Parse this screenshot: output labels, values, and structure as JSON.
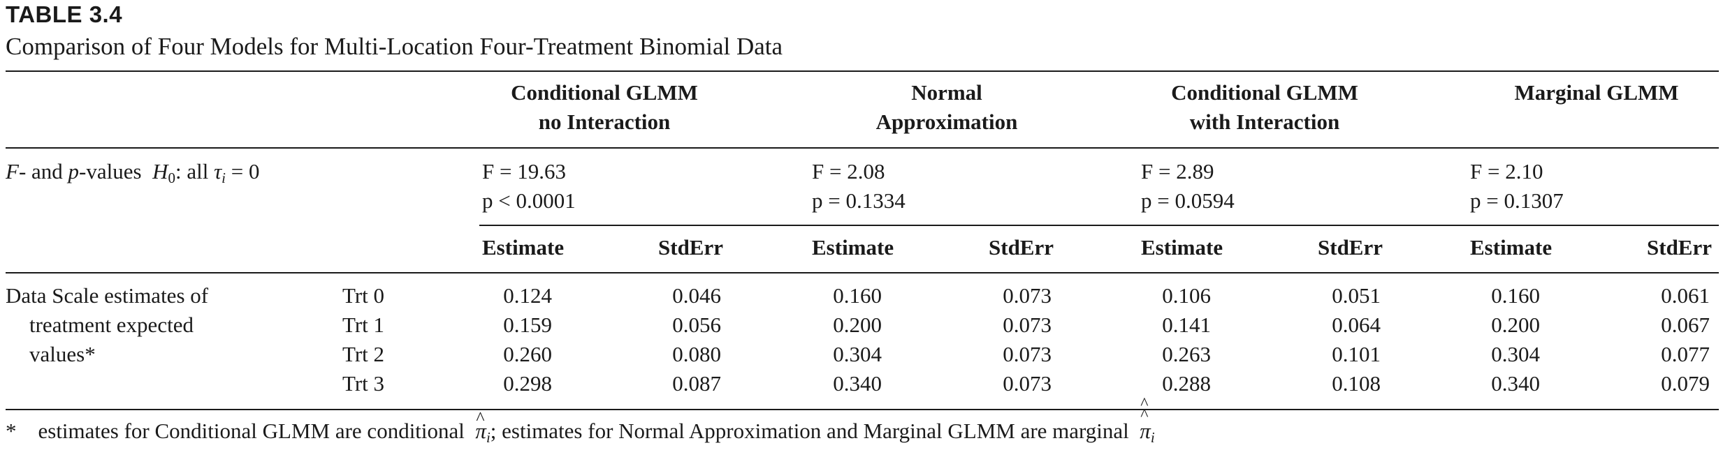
{
  "table_label": "TABLE 3.4",
  "caption": "Comparison of Four Models for Multi-Location Four-Treatment Binomial Data",
  "model_headers": [
    {
      "line1": "Conditional GLMM",
      "line2": "no Interaction"
    },
    {
      "line1": "Normal",
      "line2": "Approximation"
    },
    {
      "line1": "Conditional GLMM",
      "line2": "with Interaction"
    },
    {
      "line1": "",
      "line2": "Marginal GLMM"
    }
  ],
  "test_row": {
    "label_f": "F",
    "label_mid": "- and ",
    "label_p": "p",
    "label_values": "-values",
    "hypothesis_h": "H",
    "hypothesis_sub": "0",
    "hypothesis_rest": ": all ",
    "tau": "τ",
    "tau_sub": "i",
    "equals_zero": " = 0",
    "models": [
      {
        "f": "F = 19.63",
        "p": "p < 0.0001"
      },
      {
        "f": "F = 2.08",
        "p": "p = 0.1334"
      },
      {
        "f": "F = 2.89",
        "p": "p = 0.0594"
      },
      {
        "f": "F = 2.10",
        "p": "p = 0.1307"
      }
    ]
  },
  "column_headers": {
    "estimate": "Estimate",
    "stderr": "StdErr"
  },
  "row_group_label": [
    "Data Scale estimates of",
    "treatment expected",
    "values*"
  ],
  "rows": [
    {
      "trt": "Trt 0",
      "values": [
        "0.124",
        "0.046",
        "0.160",
        "0.073",
        "0.106",
        "0.051",
        "0.160",
        "0.061"
      ]
    },
    {
      "trt": "Trt 1",
      "values": [
        "0.159",
        "0.056",
        "0.200",
        "0.073",
        "0.141",
        "0.064",
        "0.200",
        "0.067"
      ]
    },
    {
      "trt": "Trt 2",
      "values": [
        "0.260",
        "0.080",
        "0.304",
        "0.073",
        "0.263",
        "0.101",
        "0.304",
        "0.077"
      ]
    },
    {
      "trt": "Trt 3",
      "values": [
        "0.298",
        "0.087",
        "0.340",
        "0.073",
        "0.288",
        "0.108",
        "0.340",
        "0.079"
      ]
    }
  ],
  "footnote": {
    "marker": "*",
    "text1": "estimates for Conditional GLMM are conditional",
    "pi": "π",
    "pi_sub": "i",
    "text2": "; estimates for Normal Approximation and Marginal GLMM are marginal",
    "pi2": "π",
    "pi2_sub": "i"
  }
}
